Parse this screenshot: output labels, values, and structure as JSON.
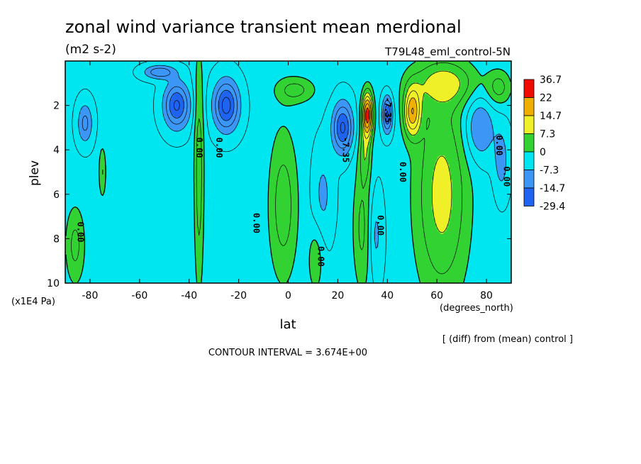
{
  "chart_data": {
    "type": "heatmap",
    "title": "zonal wind variance transient mean merdional",
    "units": "(m2 s-2)",
    "experiment": "T79L48_eml_control-5N",
    "xlabel": "lat",
    "xunits": "(degrees_north)",
    "ylabel": "plev",
    "yunits": "(x1E4 Pa)",
    "xlim": [
      -90,
      90
    ],
    "ylim": [
      10,
      0
    ],
    "x_ticks": [
      -80,
      -60,
      -40,
      -20,
      0,
      20,
      40,
      60,
      80
    ],
    "x_tick_labels": [
      "-80",
      "-60",
      "-40",
      "-20",
      "0",
      "20",
      "40",
      "60",
      "80"
    ],
    "y_ticks": [
      2,
      4,
      6,
      8,
      10
    ],
    "y_tick_labels": [
      "2",
      "4",
      "6",
      "8",
      "10"
    ],
    "levels": [
      -29.4,
      -14.7,
      -7.3,
      0,
      7.3,
      14.7,
      22,
      36.7
    ],
    "colorbar_labels": [
      "36.7",
      "22",
      "14.7",
      "7.3",
      "0",
      "-7.3",
      "-14.7",
      "-29.4"
    ],
    "level_colors": [
      "#1e64f0",
      "#3c96f5",
      "#00e6f0",
      "#32d232",
      "#f0f028",
      "#f0af00",
      "#f00a00"
    ],
    "contour_labels": [
      {
        "text": "0.00",
        "lat": -85,
        "p": 7.7
      },
      {
        "text": "0.00",
        "lat": -37,
        "p": 3.9
      },
      {
        "text": "0.00",
        "lat": -29,
        "p": 3.9
      },
      {
        "text": "0.00",
        "lat": -14,
        "p": 7.3
      },
      {
        "text": "0.00",
        "lat": 12,
        "p": 8.8
      },
      {
        "text": "-7.35",
        "lat": 22,
        "p": 4.0
      },
      {
        "text": "0.00",
        "lat": 36,
        "p": 7.4
      },
      {
        "text": "-7.35",
        "lat": 39,
        "p": 2.2
      },
      {
        "text": "0.00",
        "lat": 45,
        "p": 5.0
      },
      {
        "text": "0.00",
        "lat": 84,
        "p": 3.8
      },
      {
        "text": "0.00",
        "lat": 87,
        "p": 5.2
      }
    ],
    "contour_interval": "CONTOUR INTERVAL = 3.674E+00",
    "note": "[ (diff) from (mean) control ]",
    "features": [
      {
        "lat": -45,
        "p": 2.0,
        "amp": -16,
        "w": 5,
        "h": 1.0
      },
      {
        "lat": -25,
        "p": 2.0,
        "amp": -17,
        "w": 5,
        "h": 1.1
      },
      {
        "lat": -82,
        "p": 2.8,
        "amp": -9,
        "w": 3,
        "h": 0.9
      },
      {
        "lat": -52,
        "p": 0.5,
        "amp": -11,
        "w": 6,
        "h": 0.3
      },
      {
        "lat": 22,
        "p": 3.0,
        "amp": -16,
        "w": 4,
        "h": 1.1
      },
      {
        "lat": 40,
        "p": 2.4,
        "amp": -16,
        "w": 2,
        "h": 0.8
      },
      {
        "lat": 32,
        "p": 2.4,
        "amp": 27,
        "w": 2.2,
        "h": 1.0
      },
      {
        "lat": 31,
        "p": 4.2,
        "amp": 8,
        "w": 2.4,
        "h": 1.2
      },
      {
        "lat": 50,
        "p": 2.3,
        "amp": 19,
        "w": 3.5,
        "h": 1.1
      },
      {
        "lat": -36,
        "p": 5.0,
        "amp": 9,
        "w": 2.0,
        "h": 5.5
      },
      {
        "lat": -2,
        "p": 6.5,
        "amp": 9,
        "w": 6,
        "h": 3.5
      },
      {
        "lat": 3,
        "p": 1.3,
        "amp": 8,
        "w": 8,
        "h": 0.6
      },
      {
        "lat": 11,
        "p": 9.0,
        "amp": 6,
        "w": 3,
        "h": 1.5
      },
      {
        "lat": 30,
        "p": 7.5,
        "amp": 8,
        "w": 4,
        "h": 3.0
      },
      {
        "lat": 62,
        "p": 6.0,
        "amp": 12,
        "w": 11,
        "h": 4.8
      },
      {
        "lat": 63,
        "p": 1.0,
        "amp": 10,
        "w": 14,
        "h": 1.0
      },
      {
        "lat": 85,
        "p": 1.2,
        "amp": 8,
        "w": 5,
        "h": 0.8
      },
      {
        "lat": -75,
        "p": 5.0,
        "amp": 7,
        "w": 1.5,
        "h": 1.2
      },
      {
        "lat": -86,
        "p": 8.3,
        "amp": 8,
        "w": 4,
        "h": 1.8
      },
      {
        "lat": 77,
        "p": 3.0,
        "amp": -9,
        "w": 6,
        "h": 1.5
      },
      {
        "lat": 86,
        "p": 4.5,
        "amp": -6,
        "w": 3,
        "h": 1.5
      },
      {
        "lat": 35,
        "p": 7.8,
        "amp": -6,
        "w": 3,
        "h": 2.0
      },
      {
        "lat": 14,
        "p": 6.0,
        "amp": -5,
        "w": 4,
        "h": 2.0
      }
    ],
    "background": -3.2
  }
}
